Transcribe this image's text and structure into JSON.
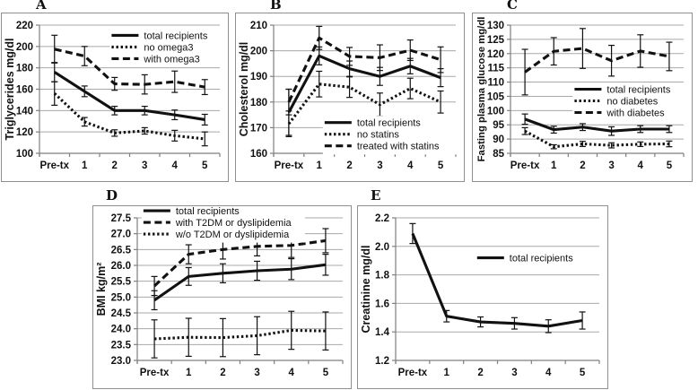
{
  "figure": {
    "background": "#ffffff",
    "colors": {
      "line": "#111111",
      "grid": "#a8a8a8",
      "axis": "#7f7f7f",
      "panel_border": "#8f8f8f",
      "text": "#111111"
    }
  },
  "chart_data": [
    {
      "panel_label": "A",
      "type": "line",
      "title": "",
      "xlabel": "",
      "ylabel": "Triglycerides mg/dl",
      "categories": [
        "Pre-tx",
        "1",
        "2",
        "3",
        "4",
        "5"
      ],
      "ylim": [
        100,
        220
      ],
      "ytick_step": 20,
      "ytick_decimals": 0,
      "grid": true,
      "legend": {
        "position": "inside-top-right",
        "anchor_x": 0.4,
        "anchor_y": 0.08
      },
      "series": [
        {
          "name": "total recipients",
          "style": "solid",
          "values": [
            176,
            158,
            140,
            140,
            136,
            131.5
          ],
          "errors": [
            9,
            5,
            4,
            4,
            4.5,
            5
          ]
        },
        {
          "name": "no omega3",
          "style": "dotted",
          "values": [
            156,
            129.5,
            119,
            121,
            116.5,
            113.5
          ],
          "errors": [
            11,
            4,
            3,
            3,
            5,
            6.5
          ]
        },
        {
          "name": "with omega3",
          "style": "dashed",
          "values": [
            197.5,
            191,
            165,
            164.5,
            167,
            162
          ],
          "errors": [
            13,
            9,
            6,
            9,
            10,
            7
          ]
        }
      ]
    },
    {
      "panel_label": "B",
      "type": "line",
      "title": "",
      "xlabel": "",
      "ylabel": "Cholesterol  mg/dl",
      "categories": [
        "Pre-tx",
        "1",
        "2",
        "3",
        "4",
        "5"
      ],
      "ylim": [
        160,
        210
      ],
      "ytick_step": 10,
      "ytick_decimals": 0,
      "grid": true,
      "legend": {
        "position": "inside-bottom-center",
        "anchor_x": 0.28,
        "anchor_y": 0.76
      },
      "series": [
        {
          "name": "total recipients",
          "style": "solid",
          "values": [
            176,
            198,
            193,
            190,
            194,
            189.5
          ],
          "errors": [
            9,
            3.5,
            3,
            3.5,
            3,
            3.5
          ]
        },
        {
          "name": "no statins",
          "style": "dotted",
          "values": [
            171.5,
            187,
            185.8,
            179,
            185.3,
            180
          ],
          "errors": [
            5,
            5,
            4,
            4.5,
            4,
            4.3
          ]
        },
        {
          "name": "treated with statins",
          "style": "dashed",
          "values": [
            180,
            205,
            197.8,
            197.3,
            200.2,
            196.5
          ],
          "errors": [
            5,
            4.5,
            3.5,
            5,
            4,
            5
          ]
        }
      ]
    },
    {
      "panel_label": "C",
      "type": "line",
      "title": "",
      "xlabel": "",
      "ylabel": "Fasting plasma glucose mg/dl",
      "categories": [
        "Pre-tx",
        "1",
        "2",
        "3",
        "4",
        "5"
      ],
      "ylim": [
        85,
        130
      ],
      "ytick_step": 5,
      "ytick_decimals": 0,
      "grid": true,
      "legend": {
        "position": "inside-middle-right",
        "anchor_x": 0.37,
        "anchor_y": 0.5
      },
      "series": [
        {
          "name": "total recipients",
          "style": "solid",
          "values": [
            97,
            93.3,
            94.2,
            92.8,
            93.5,
            93.5
          ],
          "errors": [
            1.8,
            1.2,
            1.2,
            1.5,
            1.2,
            1.2
          ]
        },
        {
          "name": "no diabetes",
          "style": "dotted",
          "values": [
            92.8,
            87.3,
            88.3,
            87.8,
            88.2,
            88.3
          ],
          "errors": [
            1.2,
            0.7,
            0.9,
            0.9,
            0.8,
            1.0
          ]
        },
        {
          "name": "with diabetes",
          "style": "dashed",
          "values": [
            113.5,
            120.8,
            121.8,
            117.5,
            120.9,
            119
          ],
          "errors": [
            8,
            4.8,
            7,
            5.4,
            5.7,
            5
          ]
        }
      ]
    },
    {
      "panel_label": "D",
      "type": "line",
      "title": "",
      "xlabel": "",
      "ylabel": "BMI kg/m²",
      "categories": [
        "Pre-tx",
        "1",
        "2",
        "3",
        "4",
        "5"
      ],
      "ylim": [
        23.0,
        27.5
      ],
      "ytick_step": 0.5,
      "ytick_decimals": 1,
      "grid": true,
      "legend": {
        "position": "inside-top-left",
        "anchor_x": 0.03,
        "anchor_y": -0.05
      },
      "series": [
        {
          "name": "total recipients",
          "style": "solid",
          "values": [
            24.9,
            25.65,
            25.75,
            25.83,
            25.88,
            26.02
          ],
          "errors": [
            0.3,
            0.28,
            0.3,
            0.3,
            0.33,
            0.33
          ]
        },
        {
          "name": "with T2DM or dyslipidemia",
          "style": "dashed",
          "values": [
            25.35,
            26.35,
            26.5,
            26.6,
            26.63,
            26.78
          ],
          "errors": [
            0.3,
            0.3,
            0.3,
            0.3,
            0.38,
            0.38
          ]
        },
        {
          "name": "w/o T2DM or dyslipidemia",
          "style": "dotted",
          "values": [
            23.68,
            23.73,
            23.72,
            23.78,
            23.95,
            23.93
          ],
          "errors": [
            0.6,
            0.6,
            0.6,
            0.6,
            0.6,
            0.6
          ]
        }
      ]
    },
    {
      "panel_label": "E",
      "type": "line",
      "title": "",
      "xlabel": "",
      "ylabel": "Creatinine mg/dl",
      "categories": [
        "Pre-tx",
        "1",
        "2",
        "3",
        "4",
        "5"
      ],
      "ylim": [
        1.2,
        2.2
      ],
      "ytick_step": 0.2,
      "ytick_decimals": 1,
      "grid": true,
      "legend": {
        "position": "inside-middle-center",
        "anchor_x": 0.4,
        "anchor_y": 0.28
      },
      "series": [
        {
          "name": "total recipients",
          "style": "solid",
          "values": [
            2.09,
            1.51,
            1.47,
            1.46,
            1.44,
            1.48
          ],
          "errors": [
            0.07,
            0.04,
            0.035,
            0.04,
            0.045,
            0.06
          ]
        }
      ]
    }
  ]
}
